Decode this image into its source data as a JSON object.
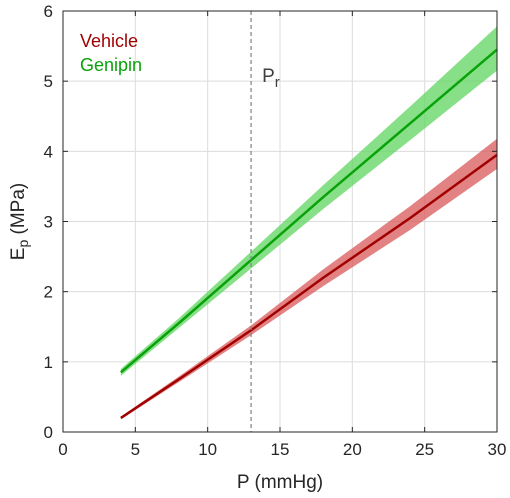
{
  "chart_data": {
    "type": "line",
    "xlabel": "P (mmHg)",
    "ylabel_main": "E",
    "ylabel_sub": "p",
    "ylabel_unit": " (MPa)",
    "xlim": [
      0,
      30
    ],
    "ylim": [
      0,
      6
    ],
    "xticks": [
      0,
      5,
      10,
      15,
      20,
      25,
      30
    ],
    "yticks": [
      0,
      1,
      2,
      3,
      4,
      5,
      6
    ],
    "grid": true,
    "legend_position": "top-left",
    "reference_line": {
      "x": 13,
      "label_main": "P",
      "label_sub": "r",
      "style": "dashed",
      "color": "#808080"
    },
    "series": [
      {
        "name": "Vehicle",
        "color": "#a00000",
        "band_color": "#d9585a",
        "x": [
          4,
          8,
          13,
          18,
          24,
          30
        ],
        "y": [
          0.2,
          0.75,
          1.45,
          2.2,
          3.05,
          3.95
        ],
        "lower": [
          0.18,
          0.71,
          1.38,
          2.08,
          2.88,
          3.75
        ],
        "upper": [
          0.22,
          0.79,
          1.52,
          2.32,
          3.22,
          4.18
        ]
      },
      {
        "name": "Genipin",
        "color": "#0aa20a",
        "band_color": "#5fd65f",
        "x": [
          4,
          8,
          13,
          18,
          24,
          30
        ],
        "y": [
          0.85,
          1.55,
          2.45,
          3.35,
          4.4,
          5.45
        ],
        "lower": [
          0.8,
          1.48,
          2.33,
          3.18,
          4.16,
          5.15
        ],
        "upper": [
          0.9,
          1.62,
          2.57,
          3.52,
          4.64,
          5.78
        ]
      }
    ]
  }
}
